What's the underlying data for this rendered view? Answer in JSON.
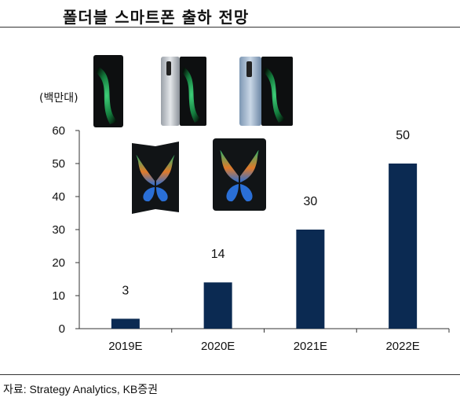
{
  "header": {
    "title": "폴더블 스마트폰 출하 전망"
  },
  "footer": {
    "source": "자료: Strategy Analytics, KB증권"
  },
  "colors": {
    "bar": "#0b2a52",
    "axis": "#333333"
  },
  "chart_data": {
    "type": "bar",
    "categories": [
      "2019E",
      "2020E",
      "2021E",
      "2022E"
    ],
    "values": [
      3,
      14,
      30,
      50
    ],
    "data_labels": [
      "3",
      "14",
      "30",
      "50"
    ],
    "title": "",
    "xlabel": "",
    "ylabel": "(백만대)",
    "ylim": [
      0,
      60
    ],
    "yticks": [
      0,
      10,
      20,
      30,
      40,
      50,
      60
    ],
    "grid": false,
    "legend": "none"
  },
  "illustrations": [
    {
      "name": "phone-folded-black-image",
      "style": "folded-dark"
    },
    {
      "name": "phone-folded-silver-image",
      "style": "folded-silver"
    },
    {
      "name": "phone-folded-blue-image",
      "style": "folded-blue"
    },
    {
      "name": "phone-open-butterfly-image",
      "style": "open-butterfly"
    },
    {
      "name": "phone-open-front-image",
      "style": "open-front"
    }
  ]
}
